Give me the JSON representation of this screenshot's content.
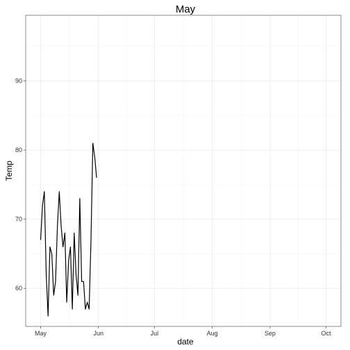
{
  "chart_data": {
    "type": "line",
    "title": "May",
    "xlabel": "date",
    "ylabel": "Temp",
    "x_tick_labels": [
      "May",
      "Jun",
      "Jul",
      "Aug",
      "Sep",
      "Oct"
    ],
    "x_tick_dates": [
      "1973-05-01",
      "1973-06-01",
      "1973-07-01",
      "1973-08-01",
      "1973-09-01",
      "1973-10-01"
    ],
    "y_ticks": [
      60,
      70,
      80,
      90
    ],
    "y_tick_labels": [
      "60",
      "70",
      "80",
      "90"
    ],
    "xlim": [
      "1973-04-23",
      "1973-10-09"
    ],
    "ylim": [
      54.5,
      99.5
    ],
    "grid": true,
    "series": [
      {
        "x": [
          "1973-05-01",
          "1973-05-02",
          "1973-05-03",
          "1973-05-04",
          "1973-05-05",
          "1973-05-06",
          "1973-05-07",
          "1973-05-08",
          "1973-05-09",
          "1973-05-10",
          "1973-05-11",
          "1973-05-12",
          "1973-05-13",
          "1973-05-14",
          "1973-05-15",
          "1973-05-16",
          "1973-05-17",
          "1973-05-18",
          "1973-05-19",
          "1973-05-20",
          "1973-05-21",
          "1973-05-22",
          "1973-05-23",
          "1973-05-24",
          "1973-05-25",
          "1973-05-26",
          "1973-05-27",
          "1973-05-28",
          "1973-05-29",
          "1973-05-30",
          "1973-05-31"
        ],
        "values": [
          67,
          72,
          74,
          62,
          56,
          66,
          65,
          59,
          61,
          69,
          74,
          69,
          66,
          68,
          58,
          64,
          66,
          57,
          68,
          62,
          59,
          73,
          61,
          61,
          57,
          58,
          57,
          67,
          81,
          79,
          76
        ]
      }
    ]
  }
}
